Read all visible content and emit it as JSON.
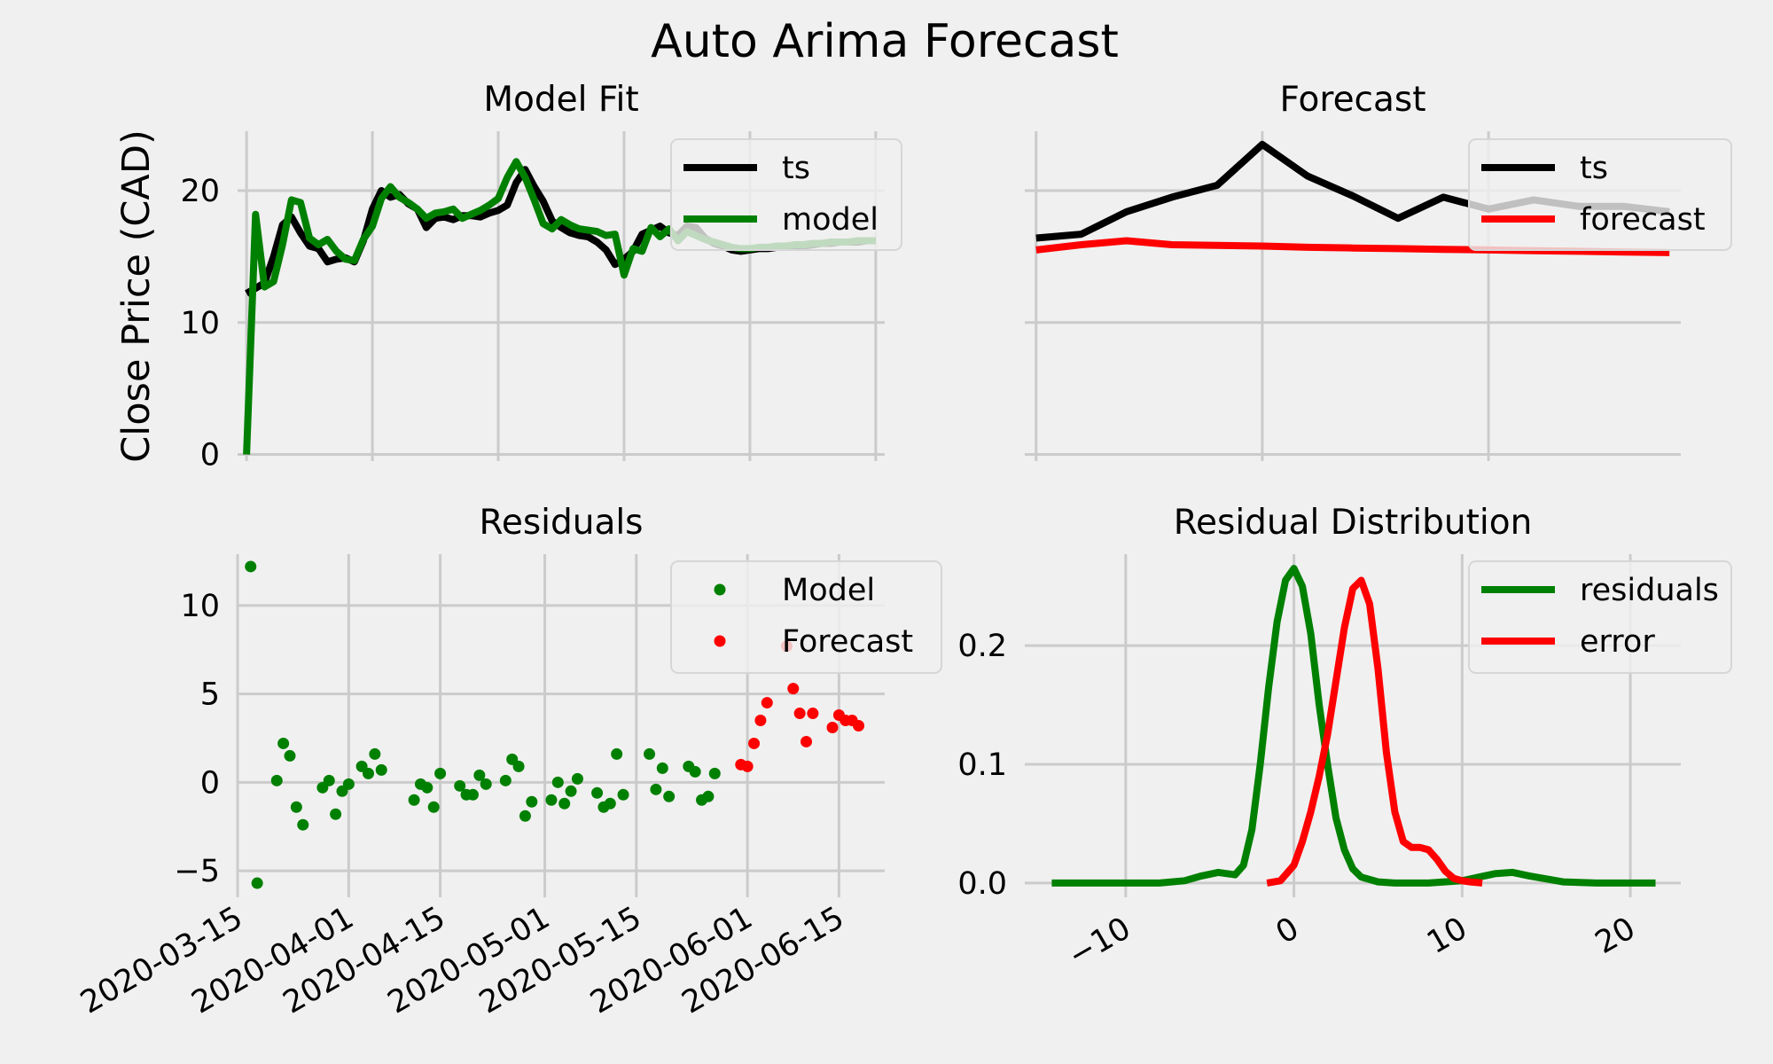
{
  "figure": {
    "title": "Auto Arima Forecast"
  },
  "chart_data": [
    {
      "id": "model_fit",
      "type": "line",
      "title": "Model Fit",
      "ylabel": "Close Price (CAD)",
      "ylim": [
        -0.5,
        24.5
      ],
      "yticks": [
        0,
        10,
        20
      ],
      "xticks": [
        0,
        14,
        28,
        42,
        56,
        70
      ],
      "grid": true,
      "legend": "top-right",
      "x": [
        0,
        1,
        2,
        3,
        4,
        5,
        6,
        7,
        8,
        9,
        10,
        11,
        12,
        13,
        14,
        15,
        16,
        17,
        18,
        19,
        20,
        21,
        22,
        23,
        24,
        25,
        26,
        27,
        28,
        29,
        30,
        31,
        32,
        33,
        34,
        35,
        36,
        37,
        38,
        39,
        40,
        41,
        42,
        43,
        44,
        45,
        46,
        47,
        48,
        49,
        50,
        51,
        52,
        53,
        54,
        55,
        56,
        57,
        58,
        59,
        60,
        61,
        62,
        63,
        64,
        65,
        66,
        67,
        68,
        69,
        70
      ],
      "series": [
        {
          "name": "ts",
          "color": "#000000",
          "values": [
            12.2,
            12.6,
            13.0,
            15.0,
            17.4,
            18.0,
            16.8,
            15.8,
            15.6,
            14.6,
            14.8,
            14.9,
            14.6,
            16.2,
            18.6,
            20.0,
            19.5,
            19.7,
            19.0,
            18.6,
            17.2,
            17.9,
            18.0,
            17.8,
            18.1,
            18.1,
            18.0,
            18.3,
            18.5,
            18.9,
            20.6,
            21.6,
            20.3,
            19.2,
            17.7,
            17.2,
            16.8,
            16.6,
            16.5,
            16.1,
            15.5,
            14.4,
            14.8,
            15.4,
            16.7,
            17.0,
            17.3,
            16.8,
            16.6,
            17.3,
            17.2,
            16.4,
            16.0,
            15.8,
            15.5,
            15.4,
            15.5,
            15.6,
            15.6,
            15.7,
            15.7,
            15.8,
            15.8,
            15.9,
            16.0,
            16.0,
            16.1,
            16.1,
            16.1,
            16.2,
            16.2
          ]
        },
        {
          "name": "model",
          "color": "#008000",
          "values": [
            0.0,
            18.2,
            12.7,
            13.1,
            15.9,
            19.3,
            19.1,
            16.4,
            15.9,
            16.3,
            15.4,
            14.8,
            14.7,
            16.3,
            17.3,
            19.4,
            20.3,
            19.5,
            19.1,
            18.6,
            17.9,
            18.3,
            18.4,
            18.6,
            17.9,
            18.2,
            18.5,
            18.9,
            19.4,
            21.0,
            22.2,
            21.0,
            19.3,
            17.5,
            17.1,
            17.8,
            17.4,
            17.1,
            17.0,
            16.9,
            16.6,
            16.7,
            13.6,
            15.6,
            15.4,
            17.2,
            16.5,
            17.1,
            16.2,
            16.9,
            16.6,
            16.3,
            16.1,
            15.9,
            15.7,
            15.6,
            15.6,
            15.7,
            15.7,
            15.8,
            15.8,
            15.9,
            15.9,
            16.0,
            16.0,
            16.1,
            16.1,
            16.1,
            16.2,
            16.2,
            16.2
          ]
        }
      ]
    },
    {
      "id": "forecast",
      "type": "line",
      "title": "Forecast",
      "ylim": [
        -0.5,
        24.5
      ],
      "yticks": [
        0,
        10,
        20
      ],
      "xticks": [
        0,
        10,
        20
      ],
      "grid": true,
      "legend": "top-right",
      "x": [
        0,
        2,
        4,
        6,
        8,
        10,
        12,
        14,
        16,
        18,
        20,
        22,
        24,
        26,
        28
      ],
      "series": [
        {
          "name": "ts",
          "color": "#000000",
          "values": [
            16.4,
            16.7,
            18.4,
            19.5,
            20.4,
            23.5,
            21.1,
            19.6,
            17.9,
            19.5,
            18.6,
            19.3,
            18.8,
            18.8,
            18.4
          ]
        },
        {
          "name": "forecast",
          "color": "#ff0000",
          "values": [
            15.5,
            15.9,
            16.2,
            15.9,
            15.85,
            15.8,
            15.7,
            15.65,
            15.6,
            15.55,
            15.5,
            15.45,
            15.4,
            15.35,
            15.3
          ]
        }
      ]
    },
    {
      "id": "residuals",
      "type": "scatter",
      "title": "Residuals",
      "ylim": [
        -6.5,
        12.9
      ],
      "yticks": [
        -5,
        0,
        5,
        10
      ],
      "xdomain": [
        "2020-03-15",
        "2020-06-22"
      ],
      "xticks": [
        "2020-03-15",
        "2020-04-01",
        "2020-04-15",
        "2020-05-01",
        "2020-05-15",
        "2020-06-01",
        "2020-06-15"
      ],
      "grid": true,
      "legend": "top-right",
      "series": [
        {
          "name": "Model",
          "color": "#008000",
          "points": [
            [
              "2020-03-17",
              12.2
            ],
            [
              "2020-03-18",
              -5.7
            ],
            [
              "2020-03-21",
              0.1
            ],
            [
              "2020-03-22",
              2.2
            ],
            [
              "2020-03-23",
              1.5
            ],
            [
              "2020-03-24",
              -1.4
            ],
            [
              "2020-03-25",
              -2.4
            ],
            [
              "2020-03-28",
              -0.3
            ],
            [
              "2020-03-29",
              0.1
            ],
            [
              "2020-03-30",
              -1.8
            ],
            [
              "2020-03-31",
              -0.5
            ],
            [
              "2020-04-01",
              -0.1
            ],
            [
              "2020-04-03",
              0.9
            ],
            [
              "2020-04-04",
              0.5
            ],
            [
              "2020-04-05",
              1.6
            ],
            [
              "2020-04-06",
              0.7
            ],
            [
              "2020-04-11",
              -1.0
            ],
            [
              "2020-04-12",
              -0.1
            ],
            [
              "2020-04-13",
              -0.3
            ],
            [
              "2020-04-14",
              -1.4
            ],
            [
              "2020-04-15",
              0.5
            ],
            [
              "2020-04-18",
              -0.2
            ],
            [
              "2020-04-19",
              -0.7
            ],
            [
              "2020-04-20",
              -0.7
            ],
            [
              "2020-04-21",
              0.4
            ],
            [
              "2020-04-22",
              -0.1
            ],
            [
              "2020-04-25",
              0.1
            ],
            [
              "2020-04-26",
              1.3
            ],
            [
              "2020-04-27",
              0.9
            ],
            [
              "2020-04-28",
              -1.9
            ],
            [
              "2020-04-29",
              -1.1
            ],
            [
              "2020-05-02",
              -1.0
            ],
            [
              "2020-05-03",
              0.0
            ],
            [
              "2020-05-04",
              -1.2
            ],
            [
              "2020-05-05",
              -0.5
            ],
            [
              "2020-05-06",
              0.2
            ],
            [
              "2020-05-09",
              -0.6
            ],
            [
              "2020-05-10",
              -1.4
            ],
            [
              "2020-05-11",
              -1.2
            ],
            [
              "2020-05-12",
              1.6
            ],
            [
              "2020-05-13",
              -0.7
            ],
            [
              "2020-05-17",
              1.6
            ],
            [
              "2020-05-18",
              -0.4
            ],
            [
              "2020-05-19",
              0.8
            ],
            [
              "2020-05-20",
              -0.8
            ],
            [
              "2020-05-23",
              0.9
            ],
            [
              "2020-05-24",
              0.6
            ],
            [
              "2020-05-25",
              -1.0
            ],
            [
              "2020-05-26",
              -0.8
            ],
            [
              "2020-05-27",
              0.5
            ]
          ]
        },
        {
          "name": "Forecast",
          "color": "#ff0000",
          "points": [
            [
              "2020-05-31",
              1.0
            ],
            [
              "2020-06-01",
              0.9
            ],
            [
              "2020-06-02",
              2.2
            ],
            [
              "2020-06-03",
              3.5
            ],
            [
              "2020-06-04",
              4.5
            ],
            [
              "2020-06-07",
              7.7
            ],
            [
              "2020-06-08",
              5.3
            ],
            [
              "2020-06-09",
              3.9
            ],
            [
              "2020-06-10",
              2.3
            ],
            [
              "2020-06-11",
              3.9
            ],
            [
              "2020-06-14",
              3.1
            ],
            [
              "2020-06-15",
              3.8
            ],
            [
              "2020-06-16",
              3.5
            ],
            [
              "2020-06-17",
              3.5
            ],
            [
              "2020-06-18",
              3.2
            ]
          ]
        }
      ]
    },
    {
      "id": "residual_distribution",
      "type": "line",
      "title": "Residual Distribution",
      "ylim": [
        -0.012,
        0.277
      ],
      "yticks": [
        0.0,
        0.1,
        0.2
      ],
      "xlim": [
        -16,
        23
      ],
      "xticks": [
        -10,
        0,
        10,
        20
      ],
      "xticklabels": [
        "−10",
        "0",
        "10",
        "20"
      ],
      "grid": true,
      "legend": "top-right",
      "series": [
        {
          "name": "residuals",
          "color": "#008000",
          "x": [
            -14.4,
            -10,
            -8,
            -6.5,
            -5.5,
            -4.5,
            -3.5,
            -3,
            -2.5,
            -2,
            -1.5,
            -1,
            -0.5,
            0,
            0.5,
            1,
            1.5,
            2,
            2.5,
            3,
            3.5,
            4,
            5,
            6,
            8,
            10,
            11,
            12,
            13,
            14,
            16,
            18,
            21.5
          ],
          "values": [
            0,
            0,
            0,
            0.002,
            0.006,
            0.009,
            0.007,
            0.015,
            0.045,
            0.1,
            0.165,
            0.22,
            0.255,
            0.265,
            0.25,
            0.21,
            0.15,
            0.1,
            0.055,
            0.028,
            0.012,
            0.005,
            0.001,
            0,
            0,
            0.002,
            0.005,
            0.008,
            0.009,
            0.006,
            0.001,
            0,
            0
          ]
        },
        {
          "name": "error",
          "color": "#ff0000",
          "x": [
            -1.6,
            -0.8,
            0,
            0.5,
            1,
            1.5,
            2,
            2.5,
            3,
            3.5,
            4,
            4.5,
            5,
            5.5,
            6,
            6.5,
            7,
            7.5,
            8,
            8.5,
            9,
            9.5,
            10,
            10.5,
            11.2
          ],
          "values": [
            0,
            0.002,
            0.015,
            0.035,
            0.06,
            0.09,
            0.125,
            0.17,
            0.215,
            0.248,
            0.255,
            0.235,
            0.18,
            0.11,
            0.06,
            0.035,
            0.03,
            0.03,
            0.028,
            0.02,
            0.01,
            0.004,
            0.002,
            0.001,
            0
          ]
        }
      ]
    }
  ]
}
